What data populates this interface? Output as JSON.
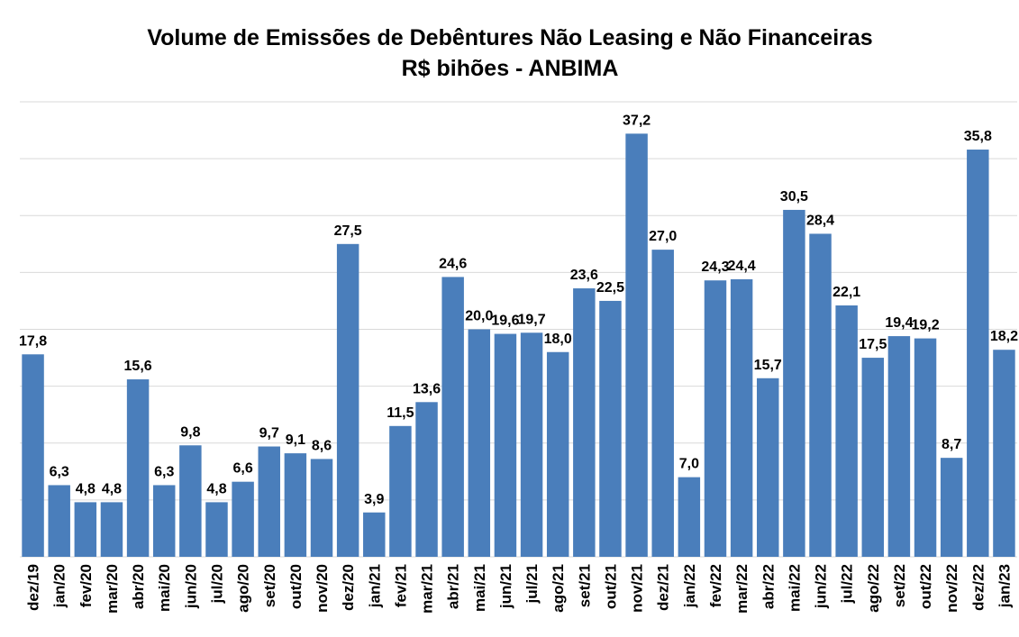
{
  "chart_data": {
    "type": "bar",
    "title": "Volume de Emissões de Debêntures Não Leasing e Não Financeiras",
    "subtitle": "R$ bihões - ANBIMA",
    "categories": [
      "dez/19",
      "jan/20",
      "fev/20",
      "mar/20",
      "abr/20",
      "mai/20",
      "jun/20",
      "jul/20",
      "ago/20",
      "set/20",
      "out/20",
      "nov/20",
      "dez/20",
      "jan/21",
      "fev/21",
      "mar/21",
      "abr/21",
      "mai/21",
      "jun/21",
      "jul/21",
      "ago/21",
      "set/21",
      "out/21",
      "nov/21",
      "dez/21",
      "jan/22",
      "fev/22",
      "mar/22",
      "abr/22",
      "mai/22",
      "jun/22",
      "jul/22",
      "ago/22",
      "set/22",
      "out/22",
      "nov/22",
      "dez/22",
      "jan/23"
    ],
    "values": [
      17.8,
      6.3,
      4.8,
      4.8,
      15.6,
      6.3,
      9.8,
      4.8,
      6.6,
      9.7,
      9.1,
      8.6,
      27.5,
      3.9,
      11.5,
      13.6,
      24.6,
      20.0,
      19.6,
      19.7,
      18.0,
      23.6,
      22.5,
      37.2,
      27.0,
      7.0,
      24.3,
      24.4,
      15.7,
      30.5,
      28.4,
      22.1,
      17.5,
      19.4,
      19.2,
      8.7,
      35.8,
      18.2
    ],
    "value_labels": [
      "17,8",
      "6,3",
      "4,8",
      "4,8",
      "15,6",
      "6,3",
      "9,8",
      "4,8",
      "6,6",
      "9,7",
      "9,1",
      "8,6",
      "27,5",
      "3,9",
      "11,5",
      "13,6",
      "24,6",
      "20,0",
      "19,6",
      "19,7",
      "18,0",
      "23,6",
      "22,5",
      "37,2",
      "27,0",
      "7,0",
      "24,3",
      "24,4",
      "15,7",
      "30,5",
      "28,4",
      "22,1",
      "17,5",
      "19,4",
      "19,2",
      "8,7",
      "35,8",
      "18,2"
    ],
    "color": "#4a7ebb",
    "ylim": [
      0,
      40
    ],
    "yticks": [
      0,
      5,
      10,
      15,
      20,
      25,
      30,
      35,
      40
    ],
    "grid": true
  }
}
